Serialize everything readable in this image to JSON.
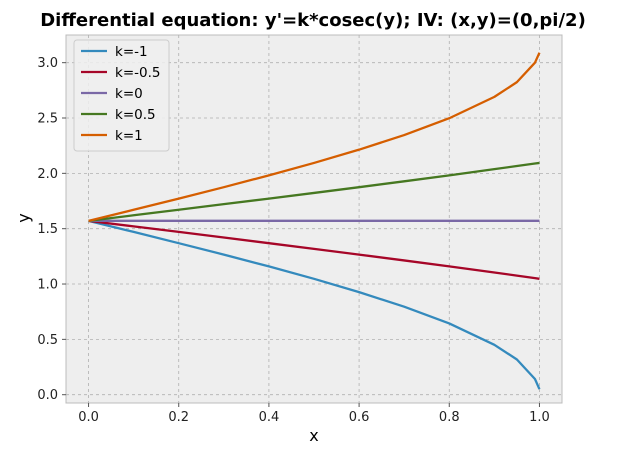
{
  "chart_data": {
    "type": "line",
    "title": "Differential equation: y'=k*cosec(y); IV: (x,y)=(0,pi/2)",
    "xlabel": "x",
    "ylabel": "y",
    "xlim": [
      -0.05,
      1.05
    ],
    "ylim": [
      -0.075,
      3.25
    ],
    "xticks": [
      0.0,
      0.2,
      0.4,
      0.6,
      0.8,
      1.0
    ],
    "xtick_labels": [
      "0.0",
      "0.2",
      "0.4",
      "0.6",
      "0.8",
      "1.0"
    ],
    "yticks": [
      0.0,
      0.5,
      1.0,
      1.5,
      2.0,
      2.5,
      3.0
    ],
    "ytick_labels": [
      "0.0",
      "0.5",
      "1.0",
      "1.5",
      "2.0",
      "2.5",
      "3.0"
    ],
    "grid": true,
    "legend_position": "top-left",
    "x": [
      0.0,
      0.1,
      0.2,
      0.3,
      0.4,
      0.5,
      0.6,
      0.7,
      0.8,
      0.9,
      0.95,
      0.99,
      1.0
    ],
    "series": [
      {
        "name": "k=-1",
        "color": "#348ABD",
        "values": [
          1.571,
          1.471,
          1.369,
          1.266,
          1.159,
          1.047,
          0.927,
          0.795,
          0.644,
          0.451,
          0.318,
          0.142,
          0.05
        ]
      },
      {
        "name": "k=-0.5",
        "color": "#A60628",
        "values": [
          1.571,
          1.521,
          1.471,
          1.42,
          1.369,
          1.318,
          1.266,
          1.213,
          1.159,
          1.104,
          1.076,
          1.053,
          1.047
        ]
      },
      {
        "name": "k=0",
        "color": "#7A68A6",
        "values": [
          1.571,
          1.571,
          1.571,
          1.571,
          1.571,
          1.571,
          1.571,
          1.571,
          1.571,
          1.571,
          1.571,
          1.571,
          1.571
        ]
      },
      {
        "name": "k=0.5",
        "color": "#467821",
        "values": [
          1.571,
          1.621,
          1.671,
          1.722,
          1.772,
          1.823,
          1.875,
          1.928,
          1.982,
          2.038,
          2.066,
          2.089,
          2.094
        ]
      },
      {
        "name": "k=1",
        "color": "#D55E00",
        "values": [
          1.571,
          1.671,
          1.772,
          1.875,
          1.982,
          2.094,
          2.214,
          2.346,
          2.498,
          2.691,
          2.824,
          3.0,
          3.09
        ]
      }
    ]
  }
}
